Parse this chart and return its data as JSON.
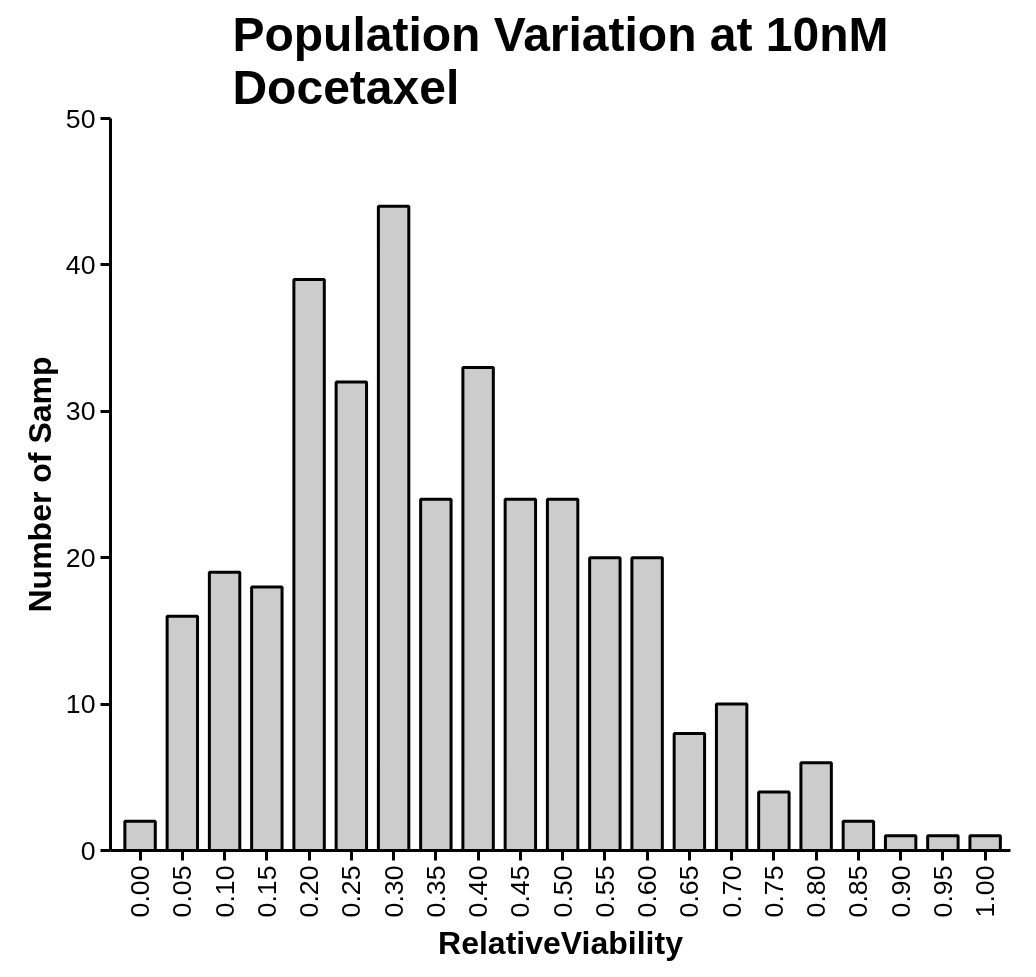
{
  "chart_data": {
    "type": "bar",
    "title": "Population Variation at 10nM\nDocetaxel",
    "xlabel": "RelativeViability",
    "ylabel": "Number of Samp",
    "categories": [
      "0.00",
      "0.05",
      "0.10",
      "0.15",
      "0.20",
      "0.25",
      "0.30",
      "0.35",
      "0.40",
      "0.45",
      "0.50",
      "0.55",
      "0.60",
      "0.65",
      "0.70",
      "0.75",
      "0.80",
      "0.85",
      "0.90",
      "0.95",
      "1.00"
    ],
    "values": [
      2,
      16,
      19,
      18,
      39,
      32,
      44,
      24,
      33,
      24,
      24,
      20,
      20,
      8,
      10,
      4,
      6,
      2,
      1,
      1,
      1
    ],
    "color": "#cccccc",
    "ylim": [
      0,
      50
    ],
    "yticks": [
      0,
      10,
      20,
      30,
      40,
      50
    ]
  }
}
